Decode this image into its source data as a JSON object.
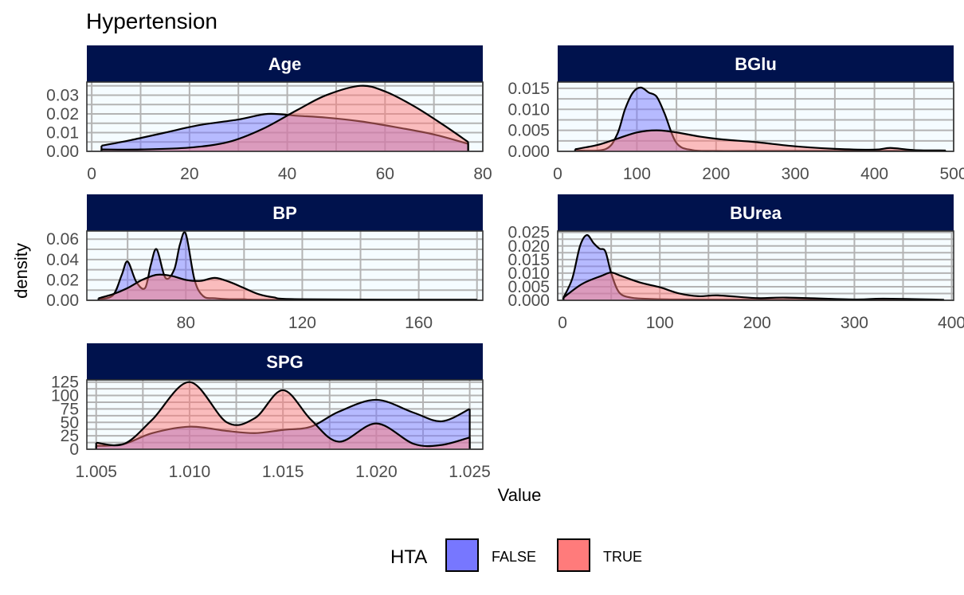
{
  "colors": {
    "strip_bg": "#00124d",
    "panel_bg": "#f5fcff",
    "grid": "#b3b3b3",
    "false_fill": "#7777ff",
    "true_fill": "#ff7b7b",
    "outline": "#000000"
  },
  "legend": {
    "title": "HTA",
    "placement": "bottom",
    "items": [
      {
        "key": "false",
        "label": "FALSE",
        "color": "#7777ff"
      },
      {
        "key": "true",
        "label": "TRUE",
        "color": "#ff7b7b"
      }
    ]
  },
  "chart_data": {
    "type": "area",
    "title": "Hypertension",
    "xlabel": "Value",
    "ylabel": "density",
    "grid": true,
    "facets": [
      {
        "name": "Age",
        "xlim": [
          -1,
          80
        ],
        "ylim": [
          0,
          0.037
        ],
        "xticks": [
          0,
          20,
          40,
          60,
          80
        ],
        "yticks": [
          0.0,
          0.01,
          0.02,
          0.03
        ],
        "ytick_labels": [
          "0.00",
          "0.01",
          "0.02",
          "0.03"
        ],
        "series": [
          {
            "name": "FALSE",
            "x": [
              2,
              8,
              15,
              22,
              30,
              36,
              42,
              48,
              55,
              62,
              70,
              77
            ],
            "y": [
              0.003,
              0.006,
              0.01,
              0.014,
              0.017,
              0.02,
              0.019,
              0.018,
              0.016,
              0.013,
              0.009,
              0.004
            ]
          },
          {
            "name": "TRUE",
            "x": [
              2,
              10,
              20,
              28,
              35,
              42,
              48,
              55,
              60,
              66,
              72,
              77
            ],
            "y": [
              0.001,
              0.001,
              0.002,
              0.005,
              0.012,
              0.022,
              0.03,
              0.035,
              0.032,
              0.024,
              0.014,
              0.005
            ]
          }
        ]
      },
      {
        "name": "BGlu",
        "xlim": [
          0,
          500
        ],
        "ylim": [
          0,
          0.0165
        ],
        "xticks": [
          0,
          100,
          200,
          300,
          400,
          500
        ],
        "yticks": [
          0.0,
          0.005,
          0.01,
          0.015
        ],
        "ytick_labels": [
          "0.000",
          "0.005",
          "0.010",
          "0.015"
        ],
        "series": [
          {
            "name": "FALSE",
            "x": [
              22,
              60,
              75,
              85,
              95,
              105,
              115,
              125,
              135,
              150,
              170,
              200,
              250,
              300,
              490
            ],
            "y": [
              0.0002,
              0.0005,
              0.004,
              0.01,
              0.014,
              0.0152,
              0.014,
              0.013,
              0.009,
              0.002,
              0.0003,
              0.0001,
              0.0001,
              0.0001,
              0.0001
            ]
          },
          {
            "name": "TRUE",
            "x": [
              22,
              50,
              75,
              100,
              125,
              150,
              180,
              210,
              250,
              300,
              350,
              400,
              420,
              450,
              490
            ],
            "y": [
              0.0005,
              0.0015,
              0.003,
              0.0045,
              0.005,
              0.0045,
              0.0035,
              0.0028,
              0.0022,
              0.0012,
              0.0006,
              0.0004,
              0.0008,
              0.0003,
              0.0002
            ]
          }
        ]
      },
      {
        "name": "BP",
        "xlim": [
          46,
          182
        ],
        "ylim": [
          0,
          0.068
        ],
        "xticks": [
          80,
          120,
          160
        ],
        "yticks": [
          0.0,
          0.02,
          0.04,
          0.06
        ],
        "ytick_labels": [
          "0.00",
          "0.02",
          "0.04",
          "0.06"
        ],
        "series": [
          {
            "name": "FALSE",
            "x": [
              50,
              55,
              58,
              60,
              63,
              66,
              68,
              70,
              73,
              76,
              78,
              80,
              83,
              86,
              90,
              95,
              100,
              110,
              180
            ],
            "y": [
              0.001,
              0.005,
              0.025,
              0.038,
              0.018,
              0.012,
              0.035,
              0.05,
              0.022,
              0.03,
              0.055,
              0.065,
              0.02,
              0.004,
              0.002,
              0.001,
              0.001,
              0.0005,
              0.0005
            ]
          },
          {
            "name": "TRUE",
            "x": [
              50,
              55,
              60,
              65,
              70,
              75,
              80,
              85,
              90,
              95,
              100,
              105,
              110,
              120,
              180
            ],
            "y": [
              0.002,
              0.006,
              0.012,
              0.02,
              0.025,
              0.024,
              0.02,
              0.019,
              0.022,
              0.018,
              0.012,
              0.006,
              0.003,
              0.001,
              0.0005
            ]
          }
        ]
      },
      {
        "name": "BUrea",
        "xlim": [
          -5,
          402
        ],
        "ylim": [
          0,
          0.0255
        ],
        "xticks": [
          0,
          100,
          200,
          300,
          400
        ],
        "yticks": [
          0.0,
          0.005,
          0.01,
          0.015,
          0.02,
          0.025
        ],
        "ytick_labels": [
          "0.000",
          "0.005",
          "0.010",
          "0.015",
          "0.020",
          "0.025"
        ],
        "series": [
          {
            "name": "FALSE",
            "x": [
              1,
              10,
              18,
              25,
              32,
              38,
              44,
              50,
              58,
              70,
              90,
              120,
              200,
              300,
              392
            ],
            "y": [
              0.001,
              0.008,
              0.02,
              0.024,
              0.021,
              0.019,
              0.018,
              0.01,
              0.003,
              0.001,
              0.0005,
              0.0003,
              0.0002,
              0.0001,
              0.0001
            ]
          },
          {
            "name": "TRUE",
            "x": [
              1,
              20,
              40,
              50,
              60,
              80,
              100,
              120,
              140,
              160,
              200,
              230,
              300,
              330,
              392
            ],
            "y": [
              0.001,
              0.006,
              0.009,
              0.0102,
              0.009,
              0.0065,
              0.0048,
              0.0025,
              0.0015,
              0.0018,
              0.0008,
              0.001,
              0.0003,
              0.0006,
              0.0002
            ]
          }
        ]
      },
      {
        "name": "SPG",
        "xlim": [
          1.0045,
          1.0257
        ],
        "ylim": [
          0,
          129
        ],
        "xticks": [
          1.005,
          1.01,
          1.015,
          1.02,
          1.025
        ],
        "xtick_labels": [
          "1.005",
          "1.010",
          "1.015",
          "1.020",
          "1.025"
        ],
        "yticks": [
          0,
          25,
          50,
          75,
          100,
          125
        ],
        "ytick_labels": [
          "0",
          "25",
          "50",
          "75",
          "100",
          "125"
        ],
        "series": [
          {
            "name": "FALSE",
            "x": [
              1.005,
              1.0065,
              1.008,
              1.01,
              1.012,
              1.0135,
              1.015,
              1.0165,
              1.018,
              1.02,
              1.022,
              1.0235,
              1.025
            ],
            "y": [
              6,
              10,
              30,
              42,
              34,
              30,
              36,
              42,
              70,
              92,
              68,
              52,
              75
            ]
          },
          {
            "name": "TRUE",
            "x": [
              1.005,
              1.0065,
              1.008,
              1.01,
              1.012,
              1.0135,
              1.015,
              1.0165,
              1.018,
              1.02,
              1.022,
              1.0235,
              1.025
            ],
            "y": [
              12,
              10,
              55,
              125,
              50,
              58,
              110,
              55,
              14,
              48,
              10,
              8,
              22
            ]
          }
        ]
      }
    ]
  }
}
